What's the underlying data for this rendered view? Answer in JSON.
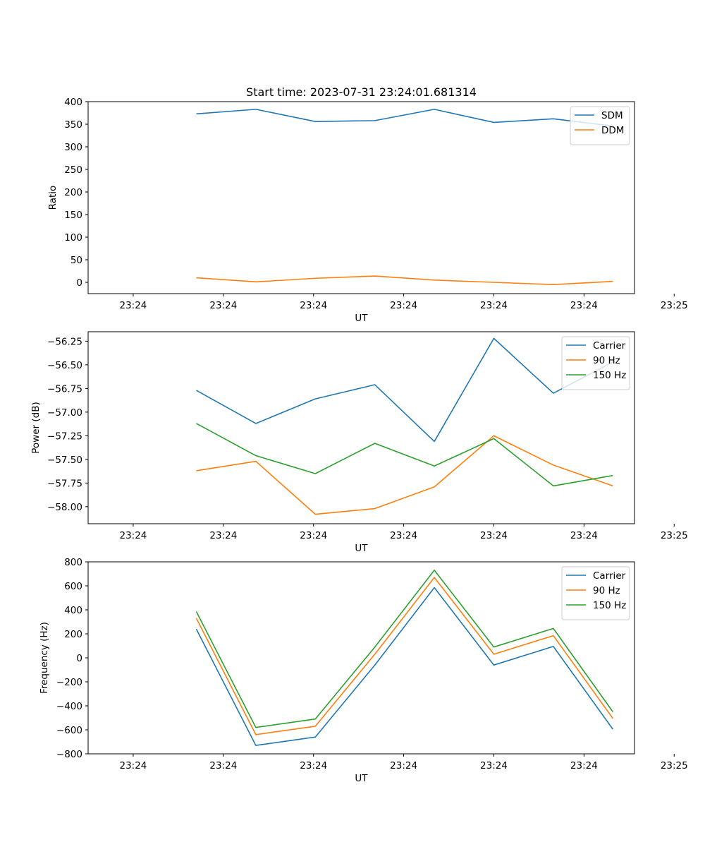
{
  "chart_data": [
    {
      "type": "line",
      "title": "Start time: 2023-07-31 23:24:01.681314",
      "xlabel": "UT",
      "ylabel": "Ratio",
      "x": [
        0.35,
        0.68,
        1.01,
        1.34,
        1.67,
        2.0,
        2.33,
        2.66
      ],
      "xlim": [
        -0.25,
        2.78
      ],
      "x_ticks": [
        0,
        0.5,
        1.0,
        1.5,
        2.0,
        2.5,
        3.0
      ],
      "x_tick_labels": [
        "23:24",
        "23:24",
        "23:24",
        "23:24",
        "23:24",
        "23:24",
        "23:25"
      ],
      "ylim": [
        -25,
        400
      ],
      "y_ticks": [
        0,
        50,
        100,
        150,
        200,
        250,
        300,
        350,
        400
      ],
      "y_tick_labels": [
        "0",
        "50",
        "100",
        "150",
        "200",
        "250",
        "300",
        "350",
        "400"
      ],
      "legend": "top-right",
      "series": [
        {
          "name": "SDM",
          "color": "#1f77b4",
          "values": [
            373,
            383,
            356,
            358,
            383,
            354,
            362,
            346
          ]
        },
        {
          "name": "DDM",
          "color": "#ff7f0e",
          "values": [
            10,
            1,
            9,
            14,
            5,
            0,
            -5,
            2
          ]
        }
      ]
    },
    {
      "type": "line",
      "xlabel": "UT",
      "ylabel": "Power (dB)",
      "x": [
        0.35,
        0.68,
        1.01,
        1.34,
        1.67,
        2.0,
        2.33,
        2.66
      ],
      "xlim": [
        -0.25,
        2.78
      ],
      "x_ticks": [
        0,
        0.5,
        1.0,
        1.5,
        2.0,
        2.5,
        3.0
      ],
      "x_tick_labels": [
        "23:24",
        "23:24",
        "23:24",
        "23:24",
        "23:24",
        "23:24",
        "23:25"
      ],
      "ylim": [
        -58.18,
        -56.15
      ],
      "y_ticks": [
        -58.0,
        -57.75,
        -57.5,
        -57.25,
        -57.0,
        -56.75,
        -56.5,
        -56.25
      ],
      "y_tick_labels": [
        "−58.00",
        "−57.75",
        "−57.50",
        "−57.25",
        "−57.00",
        "−56.75",
        "−56.50",
        "−56.25"
      ],
      "legend": "top-right",
      "series": [
        {
          "name": "Carrier",
          "color": "#1f77b4",
          "values": [
            -56.77,
            -57.12,
            -56.86,
            -56.71,
            -57.31,
            -56.22,
            -56.8,
            -56.47
          ]
        },
        {
          "name": "90 Hz",
          "color": "#ff7f0e",
          "values": [
            -57.62,
            -57.52,
            -58.08,
            -58.02,
            -57.79,
            -57.25,
            -57.56,
            -57.78
          ]
        },
        {
          "name": "150 Hz",
          "color": "#2ca02c",
          "values": [
            -57.12,
            -57.46,
            -57.65,
            -57.33,
            -57.57,
            -57.28,
            -57.78,
            -57.67
          ]
        }
      ]
    },
    {
      "type": "line",
      "xlabel": "UT",
      "ylabel": "Frequency (Hz)",
      "x": [
        0.35,
        0.68,
        1.01,
        1.34,
        1.67,
        2.0,
        2.33,
        2.66
      ],
      "xlim": [
        -0.25,
        2.78
      ],
      "x_ticks": [
        0,
        0.5,
        1.0,
        1.5,
        2.0,
        2.5,
        3.0
      ],
      "x_tick_labels": [
        "23:24",
        "23:24",
        "23:24",
        "23:24",
        "23:24",
        "23:24",
        "23:25"
      ],
      "ylim": [
        -800,
        800
      ],
      "y_ticks": [
        -800,
        -600,
        -400,
        -200,
        0,
        200,
        400,
        600,
        800
      ],
      "y_tick_labels": [
        "−800",
        "−600",
        "−400",
        "−200",
        "0",
        "200",
        "400",
        "600",
        "800"
      ],
      "legend": "top-right",
      "series": [
        {
          "name": "Carrier",
          "color": "#1f77b4",
          "values": [
            240,
            -730,
            -660,
            -60,
            585,
            -60,
            95,
            -595
          ]
        },
        {
          "name": "90 Hz",
          "color": "#ff7f0e",
          "values": [
            330,
            -640,
            -570,
            30,
            670,
            30,
            185,
            -505
          ]
        },
        {
          "name": "150 Hz",
          "color": "#2ca02c",
          "values": [
            385,
            -580,
            -510,
            90,
            730,
            90,
            245,
            -450
          ]
        }
      ]
    }
  ]
}
